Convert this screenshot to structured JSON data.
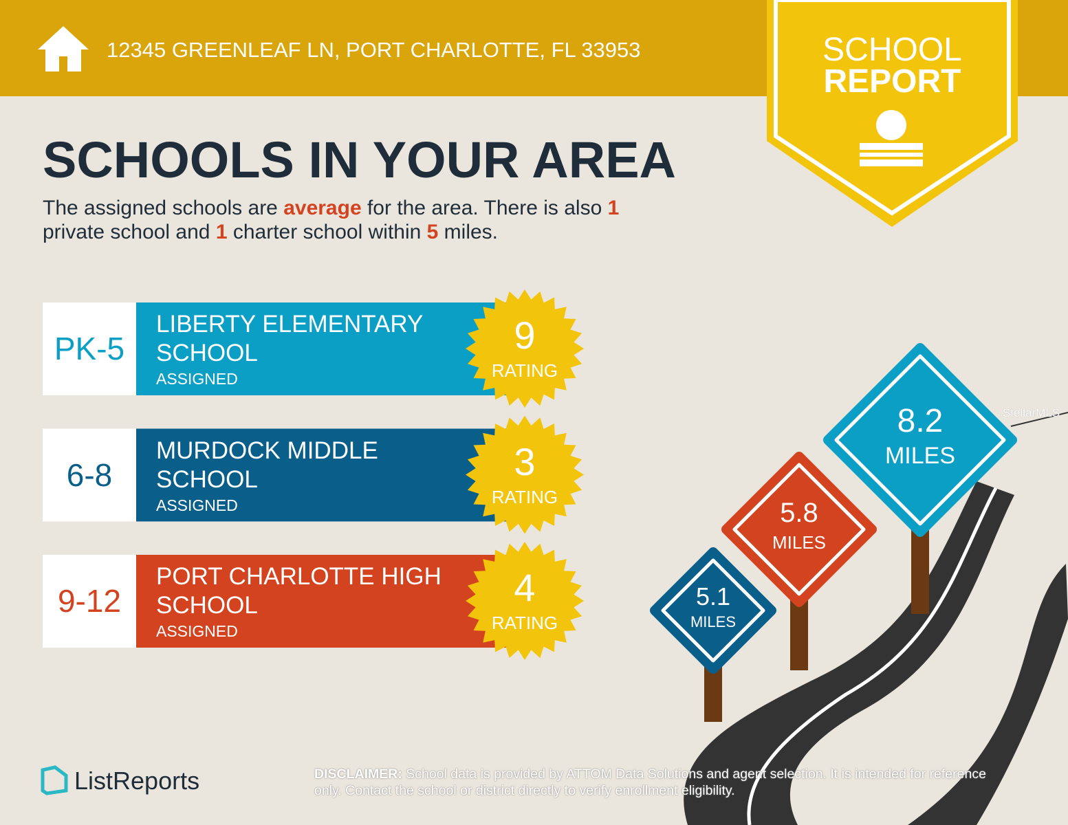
{
  "header": {
    "address": "12345 GREENLEAF LN, PORT CHARLOTTE, FL 33953"
  },
  "badge": {
    "line1": "SCHOOL",
    "line2": "REPORT"
  },
  "title": "SCHOOLS IN YOUR AREA",
  "summary": [
    [
      {
        "text": "The assigned schools are "
      },
      {
        "text": "average",
        "bold": true
      },
      {
        "text": " for the area. There is also "
      },
      {
        "text": "1",
        "bold": true
      }
    ],
    [
      {
        "text": "private school and "
      },
      {
        "text": "1",
        "bold": true
      },
      {
        "text": " charter school within "
      },
      {
        "text": "5",
        "bold": true
      },
      {
        "text": " miles."
      }
    ]
  ],
  "schools": [
    {
      "grades": "PK-5",
      "name": "LIBERTY ELEMENTARY SCHOOL",
      "status": "ASSIGNED",
      "rating": 9,
      "rating_label": "RATING",
      "color": "#0c9fc5"
    },
    {
      "grades": "6-8",
      "name": "MURDOCK MIDDLE SCHOOL",
      "status": "ASSIGNED",
      "rating": 3,
      "rating_label": "RATING",
      "color": "#0a5f8a"
    },
    {
      "grades": "9-12",
      "name": "PORT CHARLOTTE HIGH SCHOOL",
      "status": "ASSIGNED",
      "rating": 4,
      "rating_label": "RATING",
      "color": "#d4431f"
    }
  ],
  "signs": [
    {
      "distance": 5.1,
      "unit": "MILES",
      "color": "#0a5f8a"
    },
    {
      "distance": 5.8,
      "unit": "MILES",
      "color": "#d4431f"
    },
    {
      "distance": 8.2,
      "unit": "MILES",
      "color": "#0c9fc5"
    }
  ],
  "watermark": "StellarMLS",
  "footer": {
    "brand": "ListReports",
    "disclaimer_label": "DISCLAIMER:",
    "disclaimer": "School data is provided by ATTOM Data Solutions and agent selection. It is intended for reference only. Contact the school or district directly to verify enrollment eligibility."
  }
}
